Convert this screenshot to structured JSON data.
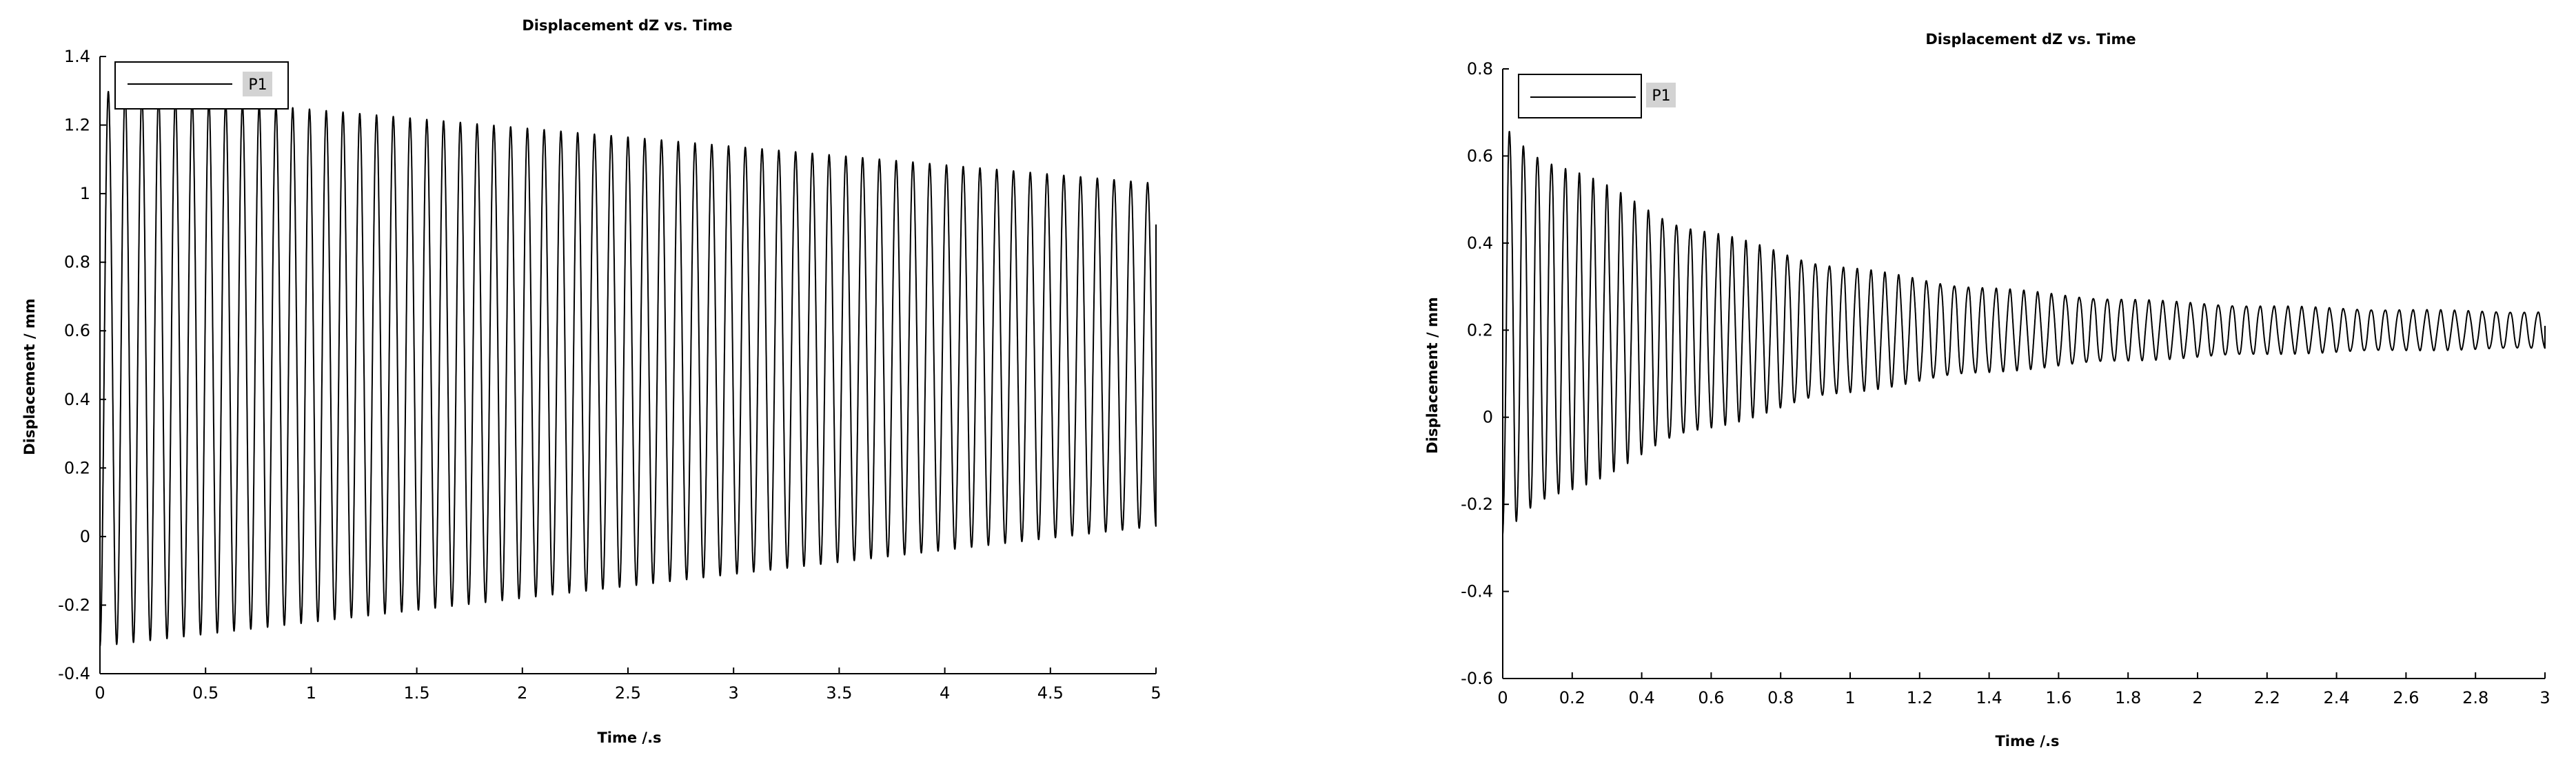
{
  "chart_data": [
    {
      "type": "line",
      "title": "Displacement dZ vs. Time",
      "xlabel": "Time /.s",
      "ylabel": "Displacement / mm",
      "xlim": [
        0,
        5
      ],
      "ylim": [
        -0.4,
        1.4
      ],
      "xticks": [
        "0",
        "0.5",
        "1",
        "1.5",
        "2",
        "2.5",
        "3",
        "3.5",
        "4",
        "4.5",
        "5"
      ],
      "yticks": [
        "-0.4",
        "-0.2",
        "0",
        "0.2",
        "0.4",
        "0.6",
        "0.8",
        "1",
        "1.2",
        "1.4"
      ],
      "grid": false,
      "legend_position": "top-left",
      "legend_bold_label": true,
      "series": [
        {
          "name": "P1",
          "color": "#000000",
          "waveform": {
            "frequency_hz": 12.6,
            "peak_start": 1.3,
            "peak_end": 1.03,
            "trough_start": -0.32,
            "trough_end": 0.03,
            "end_x": 5.0,
            "end_y": 0.91
          }
        }
      ]
    },
    {
      "type": "line",
      "title": "Displacement dZ vs. Time",
      "xlabel": "Time /.s",
      "ylabel": "Displacement / mm",
      "xlim": [
        0,
        3
      ],
      "ylim": [
        -0.6,
        0.8
      ],
      "xticks": [
        "0",
        "0.2",
        "0.4",
        "0.6",
        "0.8",
        "1",
        "1.2",
        "1.4",
        "1.6",
        "1.8",
        "2",
        "2.2",
        "2.4",
        "2.6",
        "2.8",
        "3"
      ],
      "yticks": [
        "-0.6",
        "-0.4",
        "-0.2",
        "0",
        "0.2",
        "0.4",
        "0.6",
        "0.8"
      ],
      "grid": false,
      "legend_position": "top-left",
      "legend_bold_label": true,
      "series": [
        {
          "name": "P1",
          "color": "#000000",
          "waveform": {
            "frequency_hz": 25,
            "center": 0.2,
            "amplitude_start": 0.47,
            "amplitude_end": 0.035,
            "decay_rate": 1.4,
            "end_x": 3.0,
            "end_y": 0.21
          }
        }
      ]
    }
  ]
}
